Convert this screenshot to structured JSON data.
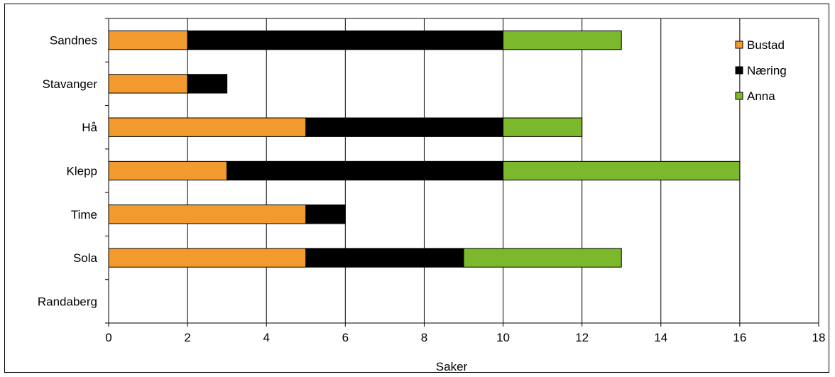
{
  "chart_data": {
    "type": "bar",
    "orientation": "horizontal",
    "stacked": true,
    "categories": [
      "Sandnes",
      "Stavanger",
      "Hå",
      "Klepp",
      "Time",
      "Sola",
      "Randaberg"
    ],
    "series": [
      {
        "name": "Bustad",
        "color": "#F39A2E",
        "values": [
          2,
          2,
          5,
          3,
          5,
          5,
          0
        ]
      },
      {
        "name": "Næring",
        "color": "#000000",
        "values": [
          8,
          1,
          5,
          7,
          1,
          4,
          0
        ]
      },
      {
        "name": "Anna",
        "color": "#7BB82B",
        "values": [
          3,
          0,
          2,
          6,
          0,
          4,
          0
        ]
      }
    ],
    "xlabel": "Saker",
    "xlim": [
      0,
      18
    ],
    "xticks": [
      0,
      2,
      4,
      6,
      8,
      10,
      12,
      14,
      16,
      18
    ],
    "grid": "vertical",
    "legend": "top-right"
  }
}
